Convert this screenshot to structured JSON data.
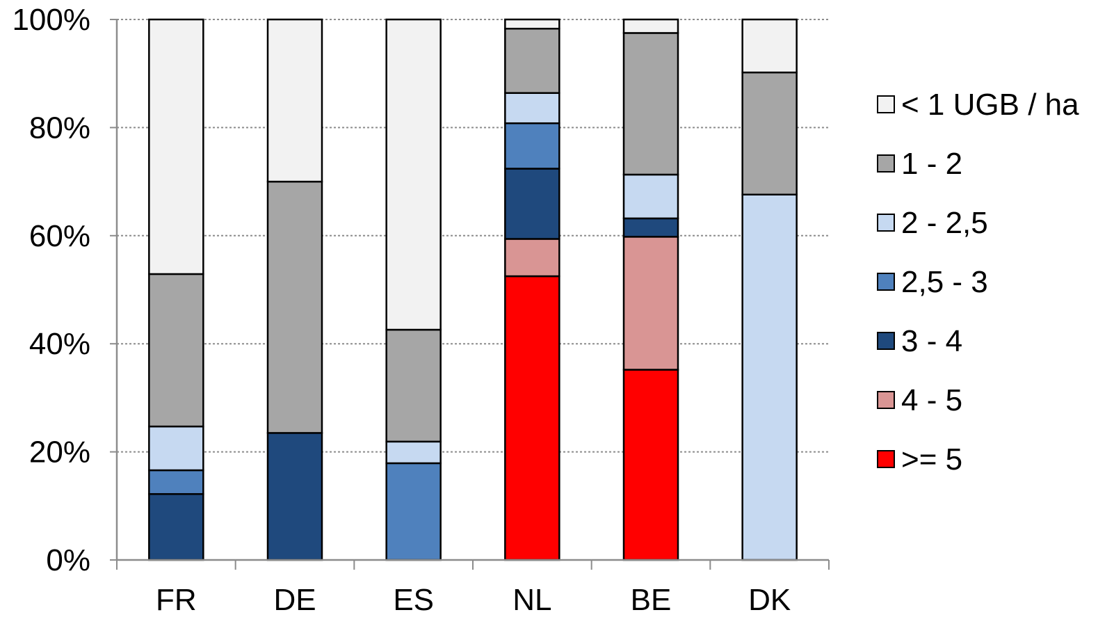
{
  "chart_data": {
    "type": "bar",
    "stacked": true,
    "normalized": true,
    "categories": [
      "FR",
      "DE",
      "ES",
      "NL",
      "BE",
      "DK"
    ],
    "series": [
      {
        "name": ">= 5",
        "color": "#ff0000",
        "values": [
          0,
          0,
          0,
          52.5,
          35.2,
          0
        ]
      },
      {
        "name": "4 - 5",
        "color": "#d99594",
        "values": [
          0,
          0,
          0,
          6.9,
          24.6,
          0
        ]
      },
      {
        "name": "3 - 4",
        "color": "#1f497d",
        "values": [
          12.2,
          23.5,
          0,
          13.0,
          3.4,
          0
        ]
      },
      {
        "name": "2,5 - 3",
        "color": "#4f81bd",
        "values": [
          4.4,
          0,
          17.9,
          8.4,
          0,
          0
        ]
      },
      {
        "name": "2 - 2,5",
        "color": "#c6d9f1",
        "values": [
          8.1,
          0,
          4.0,
          5.6,
          8.1,
          67.6
        ]
      },
      {
        "name": "1 - 2",
        "color": "#a6a6a6",
        "values": [
          28.2,
          46.5,
          20.7,
          11.9,
          26.2,
          22.6
        ]
      },
      {
        "name": "< 1 UGB / ha",
        "color": "#f2f2f2",
        "values": [
          47.1,
          30.0,
          57.4,
          1.7,
          2.5,
          9.8
        ]
      }
    ],
    "legend_order": [
      "< 1 UGB / ha",
      "1 - 2",
      "2 - 2,5",
      "2,5 - 3",
      "3 - 4",
      "4 - 5",
      ">= 5"
    ],
    "yticks": [
      "0%",
      "20%",
      "40%",
      "60%",
      "80%",
      "100%"
    ],
    "ylim": [
      0,
      100
    ],
    "grid": "horizontal-dotted",
    "legend_position": "right"
  }
}
